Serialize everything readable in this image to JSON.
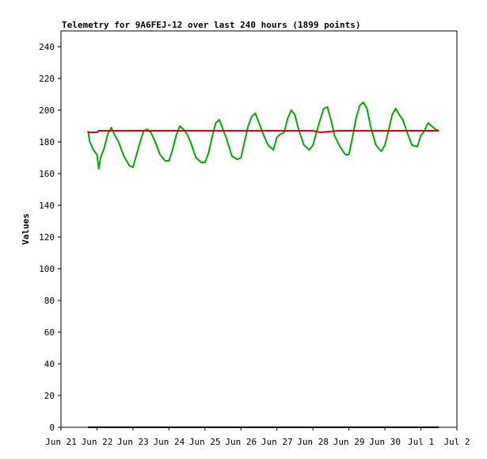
{
  "chart_data": {
    "type": "line",
    "title": "Telemetry for 9A6FEJ-12 over last 240 hours (1899 points)",
    "xlabel": "",
    "ylabel": "Values",
    "ylim": [
      0,
      250
    ],
    "xlim": [
      0,
      11
    ],
    "y_ticks": [
      0,
      20,
      40,
      60,
      80,
      100,
      120,
      140,
      160,
      180,
      200,
      220,
      240
    ],
    "x_ticks": [
      {
        "value": 0,
        "label": "Jun 21"
      },
      {
        "value": 1,
        "label": "Jun 22"
      },
      {
        "value": 2,
        "label": "Jun 23"
      },
      {
        "value": 3,
        "label": "Jun 24"
      },
      {
        "value": 4,
        "label": "Jun 25"
      },
      {
        "value": 5,
        "label": "Jun 26"
      },
      {
        "value": 6,
        "label": "Jun 27"
      },
      {
        "value": 7,
        "label": "Jun 28"
      },
      {
        "value": 8,
        "label": "Jun 29"
      },
      {
        "value": 9,
        "label": "Jun 30"
      },
      {
        "value": 10,
        "label": "Jul 1"
      },
      {
        "value": 11,
        "label": "Jul 2"
      }
    ],
    "grid": false,
    "series": [
      {
        "color": "#00aa00",
        "x": [
          0.75,
          0.8,
          0.9,
          1.0,
          1.05,
          1.1,
          1.2,
          1.3,
          1.4,
          1.5,
          1.6,
          1.75,
          1.9,
          2.0,
          2.1,
          2.2,
          2.3,
          2.4,
          2.5,
          2.6,
          2.75,
          2.9,
          3.0,
          3.1,
          3.2,
          3.3,
          3.4,
          3.5,
          3.6,
          3.75,
          3.9,
          4.0,
          4.1,
          4.2,
          4.3,
          4.4,
          4.5,
          4.6,
          4.75,
          4.9,
          5.0,
          5.1,
          5.2,
          5.3,
          5.4,
          5.5,
          5.6,
          5.75,
          5.9,
          6.0,
          6.1,
          6.2,
          6.3,
          6.4,
          6.5,
          6.6,
          6.75,
          6.9,
          7.0,
          7.1,
          7.2,
          7.3,
          7.4,
          7.5,
          7.6,
          7.75,
          7.9,
          8.0,
          8.1,
          8.2,
          8.3,
          8.4,
          8.5,
          8.6,
          8.75,
          8.9,
          9.0,
          9.1,
          9.2,
          9.3,
          9.4,
          9.5,
          9.6,
          9.75,
          9.9,
          10.0,
          10.1,
          10.2,
          10.3,
          10.4,
          10.5
        ],
        "values": [
          187,
          180,
          175,
          172,
          163,
          170,
          176,
          185,
          189,
          184,
          180,
          171,
          165,
          164,
          172,
          180,
          187,
          188,
          186,
          181,
          172,
          168,
          168,
          175,
          184,
          190,
          188,
          185,
          180,
          170,
          167,
          167,
          173,
          183,
          192,
          194,
          188,
          182,
          171,
          169,
          170,
          180,
          190,
          196,
          198,
          192,
          186,
          178,
          175,
          183,
          185,
          186,
          195,
          200,
          197,
          188,
          178,
          175,
          178,
          186,
          194,
          201,
          202,
          194,
          184,
          177,
          172,
          172,
          183,
          195,
          203,
          205,
          201,
          190,
          178,
          174,
          178,
          187,
          197,
          201,
          197,
          194,
          187,
          178,
          177,
          184,
          187,
          192,
          190,
          188,
          187
        ]
      },
      {
        "color": "#dd0000",
        "x": [
          0.75,
          1.0,
          1.05,
          2.0,
          3.0,
          4.0,
          5.0,
          6.0,
          6.8,
          7.0,
          7.2,
          7.7,
          8.0,
          9.0,
          9.2,
          10.0,
          10.5
        ],
        "values": [
          186,
          186,
          187,
          187,
          187,
          187,
          187,
          187,
          187,
          187,
          186,
          187,
          187,
          187,
          187,
          187,
          187
        ]
      },
      {
        "color": "#000000",
        "x": [
          0.75,
          10.5
        ],
        "values": [
          0,
          0
        ]
      }
    ]
  }
}
